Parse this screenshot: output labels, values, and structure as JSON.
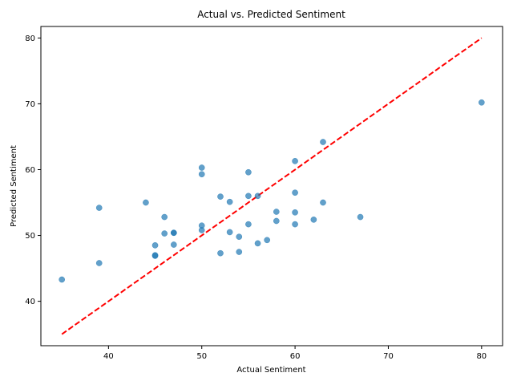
{
  "chart_data": {
    "type": "scatter",
    "title": "Actual vs. Predicted Sentiment",
    "xlabel": "Actual Sentiment",
    "ylabel": "Predicted Sentiment",
    "xlim": [
      32.75,
      82.25
    ],
    "ylim": [
      33.25,
      81.75
    ],
    "xticks": [
      40,
      50,
      60,
      70,
      80
    ],
    "yticks": [
      40,
      50,
      60,
      70,
      80
    ],
    "grid": false,
    "colors": {
      "points": "#1f77b4",
      "reference_line": "#ff0000"
    },
    "reference_line": {
      "style": "dashed",
      "from": [
        35,
        35
      ],
      "to": [
        80,
        80
      ]
    },
    "series": [
      {
        "points": [
          [
            35,
            43.3
          ],
          [
            39,
            54.2
          ],
          [
            39,
            45.8
          ],
          [
            44,
            55.0
          ],
          [
            45,
            48.5
          ],
          [
            45,
            47.0
          ],
          [
            45,
            46.9
          ],
          [
            46,
            52.8
          ],
          [
            46,
            50.3
          ],
          [
            47,
            50.4
          ],
          [
            47,
            50.4
          ],
          [
            47,
            48.6
          ],
          [
            50,
            60.3
          ],
          [
            50,
            59.3
          ],
          [
            50,
            51.5
          ],
          [
            50,
            50.8
          ],
          [
            52,
            55.9
          ],
          [
            52,
            47.3
          ],
          [
            53,
            55.1
          ],
          [
            53,
            50.5
          ],
          [
            54,
            49.8
          ],
          [
            54,
            47.5
          ],
          [
            55,
            59.6
          ],
          [
            55,
            56.0
          ],
          [
            55,
            51.7
          ],
          [
            56,
            56.0
          ],
          [
            56,
            48.8
          ],
          [
            57,
            49.3
          ],
          [
            58,
            53.6
          ],
          [
            58,
            52.2
          ],
          [
            60,
            61.3
          ],
          [
            60,
            56.5
          ],
          [
            60,
            53.5
          ],
          [
            60,
            51.7
          ],
          [
            62,
            52.4
          ],
          [
            63,
            64.2
          ],
          [
            63,
            55.0
          ],
          [
            67,
            52.8
          ],
          [
            80,
            70.2
          ]
        ]
      }
    ]
  }
}
